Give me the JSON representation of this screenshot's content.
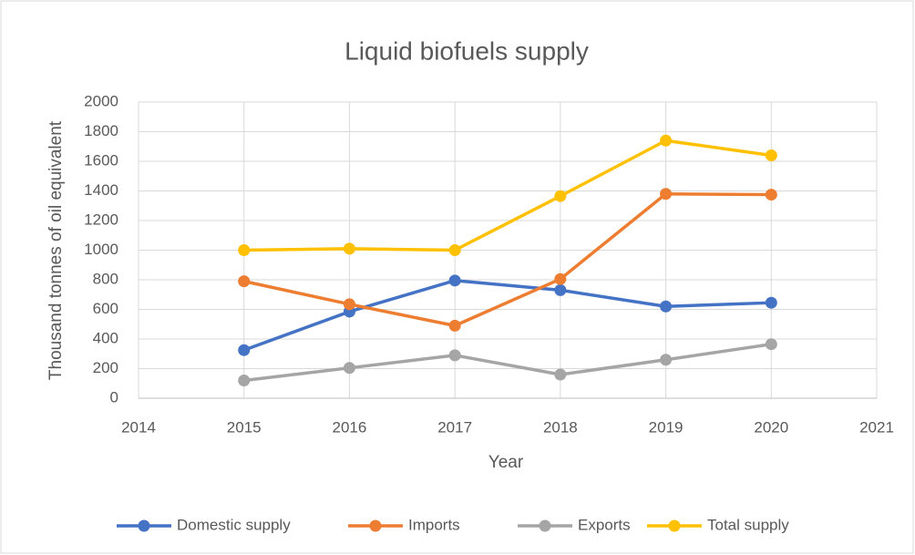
{
  "chart_data": {
    "type": "line",
    "title": "Liquid biofuels supply",
    "x_label": "Year",
    "y_label": "Thousand tonnes of oil equivalent",
    "x": [
      2015,
      2016,
      2017,
      2018,
      2019,
      2020
    ],
    "series": [
      {
        "name": "Domestic supply",
        "color": "#4472c4",
        "values": [
          325,
          585,
          795,
          730,
          620,
          645
        ]
      },
      {
        "name": "Imports",
        "color": "#ed7d31",
        "values": [
          790,
          635,
          490,
          805,
          1380,
          1375
        ]
      },
      {
        "name": "Exports",
        "color": "#a5a5a5",
        "values": [
          120,
          205,
          290,
          160,
          260,
          365
        ]
      },
      {
        "name": "Total supply",
        "color": "#ffc000",
        "values": [
          1000,
          1010,
          1000,
          1365,
          1740,
          1640
        ]
      }
    ],
    "xlim": [
      2014,
      2021
    ],
    "xticks": [
      2014,
      2015,
      2016,
      2017,
      2018,
      2019,
      2020,
      2021
    ],
    "ylim": [
      0,
      2000
    ],
    "yticks": [
      0,
      200,
      400,
      600,
      800,
      1000,
      1200,
      1400,
      1600,
      1800,
      2000
    ],
    "grid": true,
    "legend": "bottom"
  }
}
